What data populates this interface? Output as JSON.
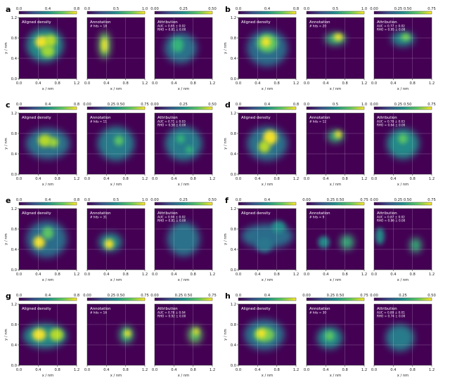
{
  "figure": {
    "axis": {
      "xlabel": "x / nm",
      "ylabel": "y / nm",
      "ticks": [
        "0.0",
        "0.4",
        "0.8",
        "1.2"
      ]
    },
    "subplot_titles": [
      "Aligned density",
      "Annotation",
      "Attribution"
    ],
    "colormap": [
      "#440154",
      "#3b528b",
      "#21918c",
      "#5ec962",
      "#fde725"
    ],
    "panels": [
      {
        "letter": "a",
        "colorbars": [
          {
            "min": "0.0",
            "mid": "0.4",
            "max": "0.8"
          },
          {
            "min": "0.0",
            "mid": "0.5",
            "max": "1.0"
          },
          {
            "min": "0.00",
            "mid": "0.25",
            "max": "0.50"
          }
        ],
        "hits": "# hits = 18",
        "auc": "AUC = 0.85 ± 0.02",
        "rho": "RHO = 0.81 ± 0.00"
      },
      {
        "letter": "b",
        "colorbars": [
          {
            "min": "0.0",
            "mid": "0.4",
            "max": "0.8"
          },
          {
            "min": "0.0",
            "mid": "0.5",
            "max": "1.0"
          },
          {
            "min": "0.00",
            "mid": "0.25 0.50",
            "max": "0.75"
          }
        ],
        "hits": "# hits = 20",
        "auc": "AUC = 0.77 ± 0.02",
        "rho": "RHO = 0.95 ± 0.00"
      },
      {
        "letter": "c",
        "colorbars": [
          {
            "min": "0.0",
            "mid": "0.4",
            "max": "0.8"
          },
          {
            "min": "0.00",
            "mid": "0.25 0.50",
            "max": "0.75"
          },
          {
            "min": "0.00",
            "mid": "0.25",
            "max": "0.50"
          }
        ],
        "hits": "# hits = 11",
        "auc": "AUC = 0.71 ± 0.03",
        "rho": "RHO = 0.58 ± 0.00"
      },
      {
        "letter": "d",
        "colorbars": [
          {
            "min": "0.0",
            "mid": "0.4",
            "max": "0.8"
          },
          {
            "min": "0.0",
            "mid": "0.5",
            "max": "1.0"
          },
          {
            "min": "0.00",
            "mid": "0.25 0.50",
            "max": "0.75"
          }
        ],
        "hits": "# hits = 12",
        "auc": "AUC = 0.78 ± 0.03",
        "rho": "RHO = 0.64 ± 0.00"
      },
      {
        "letter": "e",
        "colorbars": [
          {
            "min": "0.0",
            "mid": "0.4",
            "max": "0.8"
          },
          {
            "min": "0.0",
            "mid": "0.5",
            "max": "1.0"
          },
          {
            "min": "0.00",
            "mid": "0.25",
            "max": "0.50"
          }
        ],
        "hits": "# hits = 31",
        "auc": "AUC = 0.90 ± 0.02",
        "rho": "RHO = 0.81 ± 0.00"
      },
      {
        "letter": "f",
        "colorbars": [
          {
            "min": "0.0",
            "mid": "0.4",
            "max": ""
          },
          {
            "min": "0.00",
            "mid": "0.25 0.50",
            "max": "0.75"
          },
          {
            "min": "0.00",
            "mid": "0.25 0.50",
            "max": "0.75"
          }
        ],
        "hits": "# hits = 9",
        "auc": "AUC = 0.87 ± 0.02",
        "rho": "RHO = 0.86 ± 0.00"
      },
      {
        "letter": "g",
        "colorbars": [
          {
            "min": "0.0",
            "mid": "0.4",
            "max": "0.8"
          },
          {
            "min": "0.00",
            "mid": "0.25 0.50",
            "max": "0.75"
          },
          {
            "min": "0.00",
            "mid": "0.25 0.50",
            "max": "0.75"
          }
        ],
        "hits": "# hits = 16",
        "auc": "AUC = 0.78 ± 0.04",
        "rho": "RHO = 0.92 ± 0.00"
      },
      {
        "letter": "h",
        "colorbars": [
          {
            "min": "0.0",
            "mid": "0.4",
            "max": ""
          },
          {
            "min": "0.00",
            "mid": "0.25 0.50",
            "max": "0.75"
          },
          {
            "min": "0.00",
            "mid": "0.25",
            "max": "0.50"
          }
        ],
        "hits": "# hits = 30",
        "auc": "AUC = 0.89 ± 0.01",
        "rho": "RHO = 0.74 ± 0.00"
      }
    ]
  }
}
